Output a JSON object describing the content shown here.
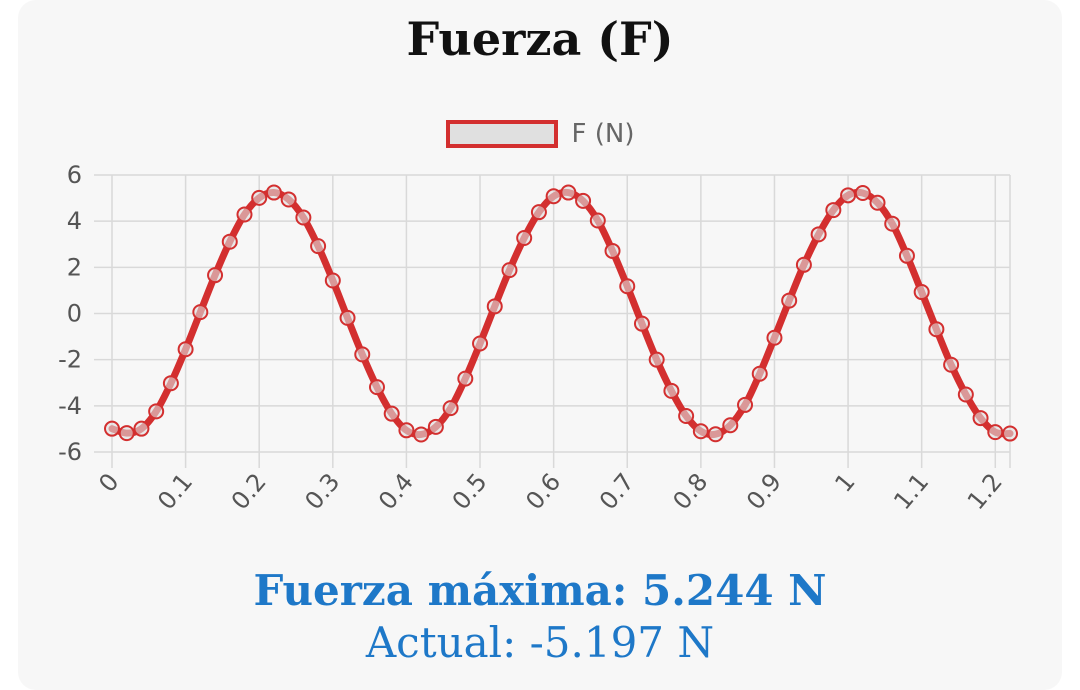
{
  "chart_data": {
    "type": "line",
    "title": "Fuerza (F)",
    "legend": {
      "placement": "top-center",
      "entries": [
        "F (N)"
      ]
    },
    "xlabel": "",
    "ylabel": "",
    "x_ticks": [
      "0",
      "0.1",
      "0.2",
      "0.3",
      "0.4",
      "0.5",
      "0.6",
      "0.7",
      "0.8",
      "0.9",
      "1",
      "1.1",
      "1.2"
    ],
    "y_ticks": [
      "6",
      "4",
      "2",
      "0",
      "-2",
      "-4",
      "-6"
    ],
    "xlim": [
      0,
      1.22
    ],
    "ylim": [
      -6,
      6
    ],
    "grid": true,
    "series": [
      {
        "name": "F (N)",
        "color": "#d32f2f",
        "fill": "#e0e0e0",
        "x": [
          0,
          0.02,
          0.04,
          0.06,
          0.08,
          0.1,
          0.12,
          0.14,
          0.16,
          0.18,
          0.2,
          0.22,
          0.24,
          0.26,
          0.28,
          0.3,
          0.32,
          0.34,
          0.36,
          0.38,
          0.4,
          0.42,
          0.44,
          0.46,
          0.48,
          0.5,
          0.52,
          0.54,
          0.56,
          0.58,
          0.6,
          0.62,
          0.64,
          0.66,
          0.68,
          0.7,
          0.72,
          0.74,
          0.76,
          0.78,
          0.8,
          0.82,
          0.84,
          0.86,
          0.88,
          0.9,
          0.92,
          0.94,
          0.96,
          0.98,
          1,
          1.02,
          1.04,
          1.06,
          1.08,
          1.1,
          1.12,
          1.14,
          1.16,
          1.18,
          1.2,
          1.22
        ],
        "values": [
          -4.99,
          -5.18,
          -4.99,
          -4.24,
          -3.02,
          -1.55,
          0.06,
          1.66,
          3.11,
          4.29,
          5.01,
          5.24,
          4.94,
          4.16,
          2.92,
          1.43,
          -0.19,
          -1.77,
          -3.19,
          -4.34,
          -5.06,
          -5.24,
          -4.91,
          -4.1,
          -2.82,
          -1.3,
          0.31,
          1.88,
          3.27,
          4.39,
          5.08,
          5.24,
          4.88,
          4.03,
          2.71,
          1.18,
          -0.44,
          -2.0,
          -3.35,
          -4.44,
          -5.1,
          -5.23,
          -4.84,
          -3.96,
          -2.61,
          -1.05,
          0.56,
          2.11,
          3.43,
          4.48,
          5.12,
          5.22,
          4.8,
          3.89,
          2.5,
          0.93,
          -0.68,
          -2.22,
          -3.51,
          -4.53,
          -5.14,
          -5.2
        ]
      }
    ]
  },
  "stats": {
    "max_label": "Fuerza máxima: 5.244 N",
    "current_label": "Actual: -5.197 N"
  }
}
